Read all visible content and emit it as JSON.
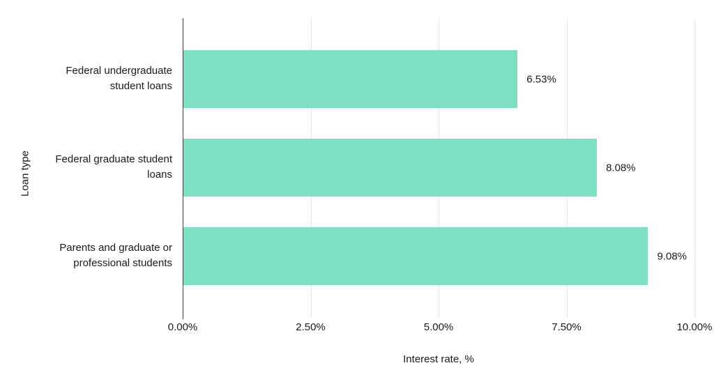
{
  "chart_data": {
    "type": "bar",
    "orientation": "horizontal",
    "title": "",
    "categories": [
      "Federal undergraduate student loans",
      "Federal graduate student loans",
      "Parents and graduate or professional students"
    ],
    "values": [
      6.53,
      8.08,
      9.08
    ],
    "value_labels": [
      "6.53%",
      "8.08%",
      "9.08%"
    ],
    "xlabel": "Interest rate, %",
    "ylabel": "Loan type",
    "xlim": [
      0,
      10
    ],
    "x_ticks": [
      0,
      2.5,
      5,
      7.5,
      10
    ],
    "x_tick_labels": [
      "0.00%",
      "2.50%",
      "5.00%",
      "7.50%",
      "10.00%"
    ],
    "grid": "vertical-gridlines-on",
    "legend": "none",
    "bar_color": "#7ddfc4",
    "axis_line_color": "#3d3d3d",
    "gridline_color": "#e6e6e6",
    "text_color": "#1a1a1a",
    "background_color": "#ffffff"
  }
}
